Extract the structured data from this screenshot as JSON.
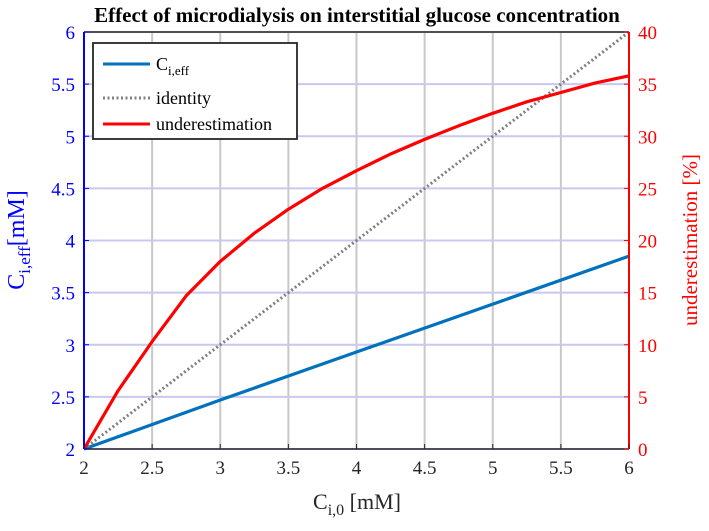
{
  "chart_data": {
    "type": "line",
    "title": "Effect of microdialysis on interstitial glucose concentration",
    "xlabel": {
      "main": "C",
      "sub": "i,0",
      "unit": " [mM]"
    },
    "ylabel_left": {
      "main": "C",
      "sub": "i,eff",
      "unit": "[mM]"
    },
    "ylabel_right": "underestimation [%]",
    "xlim": [
      2,
      6
    ],
    "ylim_left": [
      2,
      6
    ],
    "ylim_right": [
      0,
      40
    ],
    "x_ticks": [
      "2",
      "2.5",
      "3",
      "3.5",
      "4",
      "4.5",
      "5",
      "5.5",
      "6"
    ],
    "y_left_ticks": [
      "2",
      "2.5",
      "3",
      "3.5",
      "4",
      "4.5",
      "5",
      "5.5",
      "6"
    ],
    "y_right_ticks": [
      "0",
      "5",
      "10",
      "15",
      "20",
      "25",
      "30",
      "35",
      "40"
    ],
    "grid": true,
    "legend_position": "top-left",
    "series": [
      {
        "name": "C",
        "name_sub": "i,eff",
        "axis": "left",
        "color": "#0072bd",
        "style": "solid",
        "x": [
          2,
          3,
          4,
          5,
          6
        ],
        "y": [
          2.0,
          2.47,
          2.93,
          3.39,
          3.85
        ]
      },
      {
        "name": "identity",
        "axis": "left",
        "color": "#808080",
        "style": "dotted",
        "x": [
          2,
          6
        ],
        "y": [
          2,
          6
        ]
      },
      {
        "name": "underestimation",
        "axis": "right",
        "color": "#ff0000",
        "style": "solid",
        "x": [
          2,
          2.25,
          2.5,
          2.75,
          3,
          3.25,
          3.5,
          3.75,
          4,
          4.25,
          4.5,
          4.75,
          5,
          5.25,
          5.5,
          5.75,
          6
        ],
        "y": [
          0,
          5.6,
          10.3,
          14.7,
          18.0,
          20.7,
          23.0,
          25.0,
          26.7,
          28.3,
          29.7,
          31.0,
          32.2,
          33.3,
          34.2,
          35.1,
          35.8
        ]
      }
    ],
    "colors": {
      "left_axis": "#0000ff",
      "right_axis": "#ff0000",
      "grid_vertical": "#c8c8c8",
      "grid_horizontal": "#c8c8f0"
    }
  }
}
